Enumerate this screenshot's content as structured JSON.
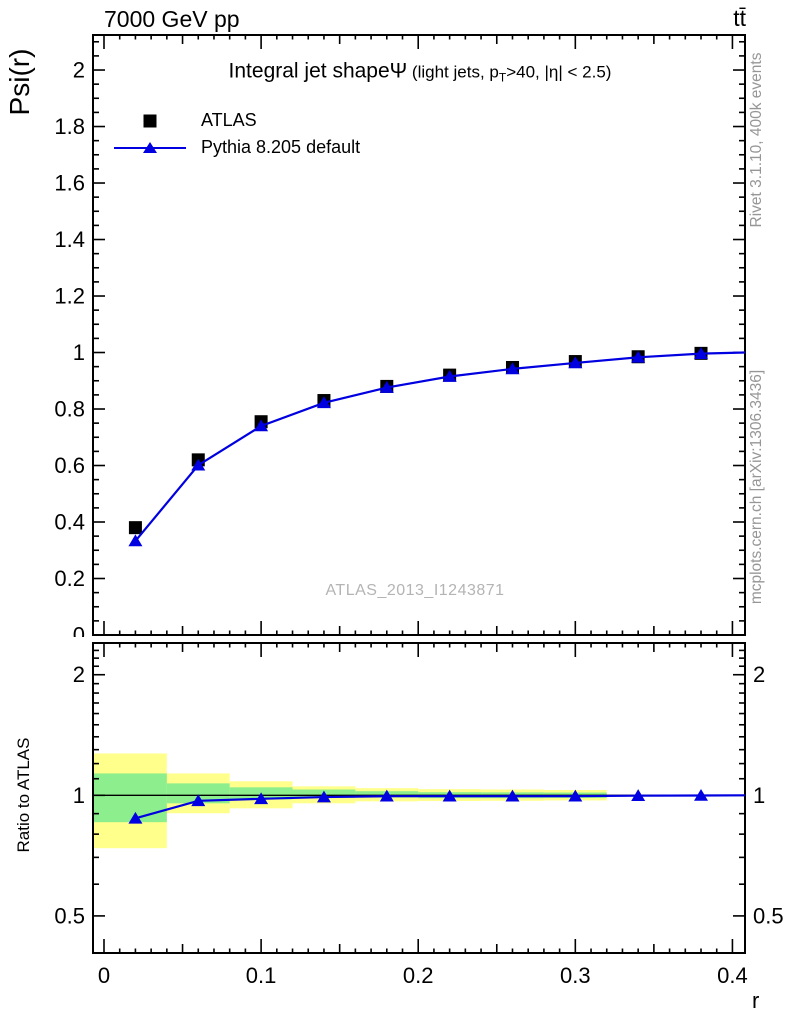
{
  "header": {
    "beam": "7000 GeV pp",
    "process": "tt̄"
  },
  "title": {
    "main": "Integral jet shape",
    "psi": "Ψ",
    "cond_pre": " (light jets, p",
    "cond_sub": "T",
    "cond_post": ">40, |η| < 2.5)"
  },
  "legend": [
    {
      "label": "ATLAS",
      "marker": "square"
    },
    {
      "label": "Pythia 8.205 default",
      "marker": "triangle-line"
    }
  ],
  "watermark": "ATLAS_2013_I1243871",
  "side_labels": {
    "rivet": "Rivet 3.1.10,  400k events",
    "mcplots": "mcplots.cern.ch [arXiv:1306.3436]"
  },
  "colors": {
    "pythia_blue": "#0000e0",
    "marker_black": "#000000",
    "band_yellow": "#ffff8c",
    "band_green": "#8cee8c",
    "frame_black": "#000000",
    "text_gray": "#969696",
    "watermark_gray": "#b4b4b4"
  },
  "chart_data": {
    "type": "line",
    "title": "Integral jet shape Ψ (light jets, pT>40, |η| < 2.5)",
    "xlabel": "r",
    "ylabel": "Psi(r)",
    "x": [
      0.02,
      0.06,
      0.1,
      0.14,
      0.18,
      0.22,
      0.26,
      0.3,
      0.34,
      0.38
    ],
    "bin_width": 0.04,
    "series": [
      {
        "name": "ATLAS",
        "marker": "square",
        "values": [
          0.38,
          0.62,
          0.755,
          0.83,
          0.88,
          0.92,
          0.947,
          0.968,
          0.985,
          0.997
        ]
      },
      {
        "name": "Pythia 8.205 default",
        "marker": "triangle",
        "line": true,
        "values": [
          0.333,
          0.601,
          0.74,
          0.822,
          0.876,
          0.915,
          0.942,
          0.963,
          0.983,
          0.996
        ],
        "line_end": {
          "x": 0.408,
          "y": 1.0
        }
      }
    ],
    "x_axis": {
      "label": "r",
      "min": -0.007,
      "max": 0.408,
      "major_ticks": [
        0,
        0.1,
        0.2,
        0.3,
        0.4
      ],
      "medium_step": 0.05,
      "minor_step": 0.01
    },
    "y_axis": {
      "label": "Psi(r)",
      "min": 0,
      "max": 2.124,
      "major_step": 0.2,
      "minor_step": 0.05,
      "label_values": [
        0,
        0.2,
        0.4,
        0.6,
        0.8,
        1,
        1.2,
        1.4,
        1.6,
        1.8,
        2
      ]
    },
    "ratio_panel": {
      "label": "Ratio to ATLAS",
      "scale": "log",
      "min": 0.404,
      "max": 2.4,
      "major_ticks": [
        0.5,
        1,
        2
      ],
      "reference_line": 1,
      "values": [
        0.876,
        0.969,
        0.98,
        0.99,
        0.995,
        0.995,
        0.995,
        0.995,
        0.998,
        0.999
      ],
      "line_end": {
        "x": 0.408,
        "y": 1.0
      },
      "bands": [
        {
          "x0": 0.0,
          "x1": 0.04,
          "yellow": [
            0.738,
            1.272
          ],
          "green": [
            0.857,
            1.134
          ]
        },
        {
          "x0": 0.04,
          "x1": 0.08,
          "yellow": [
            0.902,
            1.134
          ],
          "green": [
            0.955,
            1.071
          ]
        },
        {
          "x0": 0.08,
          "x1": 0.12,
          "yellow": [
            0.928,
            1.084
          ],
          "green": [
            0.977,
            1.047
          ]
        },
        {
          "x0": 0.12,
          "x1": 0.16,
          "yellow": [
            0.955,
            1.053
          ],
          "green": [
            0.985,
            1.034
          ]
        },
        {
          "x0": 0.16,
          "x1": 0.2,
          "yellow": [
            0.966,
            1.042
          ],
          "green": [
            0.987,
            1.024
          ]
        },
        {
          "x0": 0.2,
          "x1": 0.24,
          "yellow": [
            0.968,
            1.036
          ],
          "green": [
            0.984,
            1.018
          ]
        },
        {
          "x0": 0.24,
          "x1": 0.28,
          "yellow": [
            0.969,
            1.034
          ],
          "green": [
            0.984,
            1.017
          ]
        },
        {
          "x0": 0.28,
          "x1": 0.32,
          "yellow": [
            0.971,
            1.031
          ],
          "green": [
            0.985,
            1.016
          ]
        }
      ]
    }
  }
}
